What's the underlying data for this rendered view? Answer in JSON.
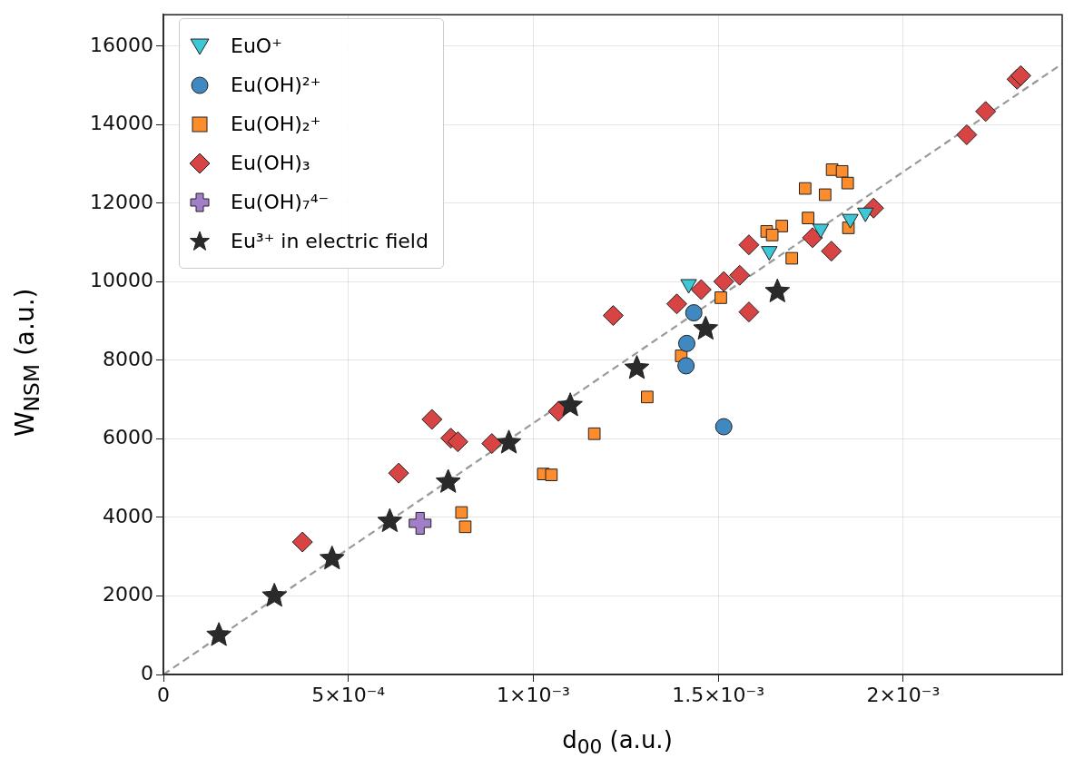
{
  "chart_data": {
    "type": "scatter",
    "xlabel": "d$_{00}$ (a.u.)",
    "ylabel": "W$_{NSM}$ (a.u.)",
    "xlim": [
      0,
      0.00243
    ],
    "ylim": [
      0,
      16800
    ],
    "xticks": [
      0,
      {
        "value": 0.0005,
        "label": "5×10⁻⁴"
      },
      {
        "value": 0.001,
        "label": "1×10⁻³"
      },
      {
        "value": 0.0015,
        "label": "1.5×10⁻³"
      },
      {
        "value": 0.002,
        "label": "2×10⁻³"
      }
    ],
    "yticks": [
      0,
      2000,
      4000,
      6000,
      8000,
      10000,
      12000,
      14000,
      16000
    ],
    "grid": true,
    "legend": "top left",
    "series": [
      {
        "name": "EuO⁺",
        "color": "#3cc8d6",
        "marker": "triangle",
        "x": [
          0.00142,
          0.001638,
          0.001777,
          0.001857,
          0.001898
        ],
        "values": [
          9940,
          10780,
          11350,
          11600,
          11760
        ]
      },
      {
        "name": "Eu(OH)²⁺",
        "color": "#3f88c0",
        "marker": "circle",
        "x": [
          0.001434,
          0.001415,
          0.001413,
          0.001515
        ],
        "values": [
          9210,
          8430,
          7860,
          6310
        ]
      },
      {
        "name": "Eu(OH)₂⁺",
        "color": "#fd8c2c",
        "marker": "square",
        "x": [
          0.001808,
          0.001835,
          0.00185,
          0.001735,
          0.001789,
          0.001743,
          0.001672,
          0.001631,
          0.001646,
          0.001699,
          0.001852,
          0.001507,
          0.0014,
          0.001308,
          0.001165,
          0.001027,
          0.001049,
          0.000806,
          0.000816
        ],
        "values": [
          12855,
          12810,
          12513,
          12376,
          12217,
          11624,
          11419,
          11282,
          11191,
          10598,
          11373,
          9595,
          8114,
          7066,
          6131,
          5105,
          5083,
          4125,
          3761
        ]
      },
      {
        "name": "Eu(OH)₃",
        "color": "#d84444",
        "marker": "diamond",
        "x": [
          0.000726,
          0.000777,
          0.000796,
          0.000888,
          0.000636,
          0.000376,
          0.001068,
          0.001216,
          0.001388,
          0.001454,
          0.001515,
          0.001558,
          0.001583,
          0.001583,
          0.001755,
          0.001806,
          0.00192,
          0.002172,
          0.002223,
          0.002308,
          0.002318
        ],
        "values": [
          6496,
          6017,
          5926,
          5880,
          5128,
          3373,
          6701,
          9140,
          9436,
          9800,
          10006,
          10165,
          9231,
          10940,
          11122,
          10780,
          11875,
          13743,
          14336,
          15157,
          15248
        ]
      },
      {
        "name": "Eu(OH)₇⁴⁻",
        "color": "#a27dc8",
        "marker": "cross",
        "x": [
          0.000694
        ],
        "values": [
          3850
        ]
      },
      {
        "name": "Eu³⁺ in electric field",
        "color": "#2a2a2a",
        "marker": "star",
        "x": [
          0.00015,
          0.0003,
          0.000456,
          0.000612,
          0.00077,
          0.000934,
          0.0011,
          0.00128,
          0.001466,
          0.00166
        ],
        "values": [
          1000,
          2000,
          2950,
          3900,
          4900,
          5900,
          6850,
          7800,
          8800,
          9750
        ]
      },
      {
        "type": "line",
        "color": "#999999",
        "line_style": "dashed",
        "marker": "none",
        "x": [
          0,
          0.00243
        ],
        "values": [
          0,
          15550
        ]
      }
    ]
  }
}
